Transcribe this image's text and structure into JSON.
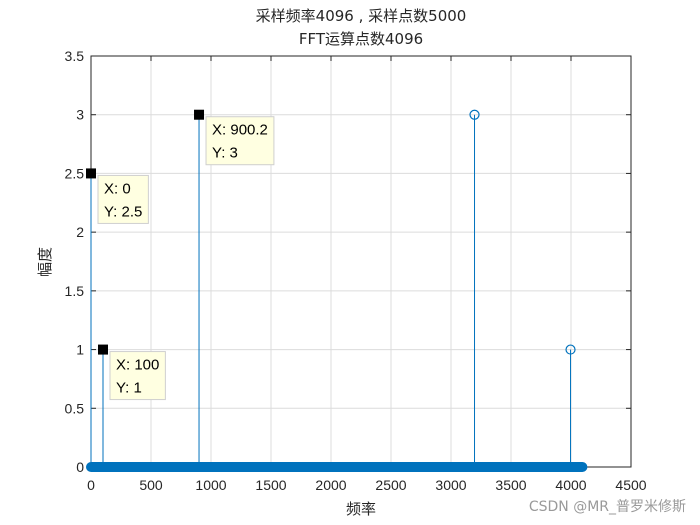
{
  "chart_data": {
    "type": "stem",
    "title_line1": "采样频率4096 , 采样点数5000",
    "title_line2": "FFT运算点数4096",
    "xlabel": "频率",
    "ylabel": "幅度",
    "xlim": [
      0,
      4500
    ],
    "ylim": [
      0,
      3.5
    ],
    "xticks": [
      0,
      500,
      1000,
      1500,
      2000,
      2500,
      3000,
      3500,
      4000,
      4500
    ],
    "xtick_labels": [
      "0",
      "500",
      "1000",
      "1500",
      "2000",
      "2500",
      "3000",
      "3500",
      "4000",
      "4500"
    ],
    "yticks": [
      0,
      0.5,
      1,
      1.5,
      2,
      2.5,
      3,
      3.5
    ],
    "ytick_labels": [
      "0",
      "0.5",
      "1",
      "1.5",
      "2",
      "2.5",
      "3",
      "3.5"
    ],
    "grid": true,
    "color": "#0072bd",
    "baseline": {
      "x_start": 0,
      "x_end": 4095,
      "y": 0
    },
    "peaks": [
      {
        "x": 0,
        "y": 2.5,
        "marked": true
      },
      {
        "x": 100,
        "y": 1,
        "marked": true
      },
      {
        "x": 900.2,
        "y": 3,
        "marked": true
      },
      {
        "x": 3196,
        "y": 3,
        "marked": false
      },
      {
        "x": 3996,
        "y": 1,
        "marked": false
      }
    ],
    "datatips": [
      {
        "x_label": "X: 0",
        "y_label": "Y: 2.5",
        "anchor_x": 0,
        "anchor_y": 2.5
      },
      {
        "x_label": "X: 100",
        "y_label": "Y: 1",
        "anchor_x": 100,
        "anchor_y": 1
      },
      {
        "x_label": "X: 900.2",
        "y_label": "Y: 3",
        "anchor_x": 900.2,
        "anchor_y": 3
      }
    ]
  },
  "watermark": "CSDN @MR_普罗米修斯"
}
